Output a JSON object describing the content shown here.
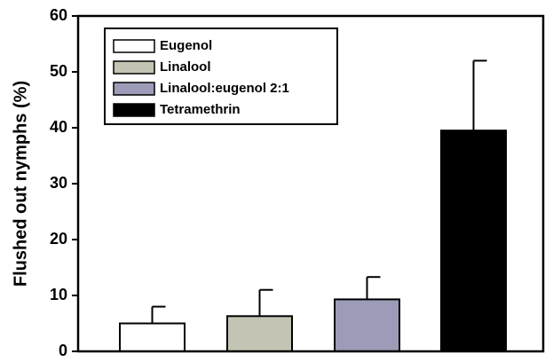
{
  "chart_data": {
    "type": "bar",
    "y_label": "Flushed out nymphs (%)",
    "series": [
      {
        "name": "Eugenol",
        "color": "#ffffff",
        "values": [
          5
        ],
        "errors": [
          3
        ]
      },
      {
        "name": "Linalool",
        "color": "#c4c4b4",
        "values": [
          6.3
        ],
        "errors": [
          4.7
        ]
      },
      {
        "name": "Linalool:eugenol  2:1",
        "color": "#9c9cb8",
        "values": [
          9.3
        ],
        "errors": [
          4
        ]
      },
      {
        "name": "Tetramethrin",
        "color": "#000000",
        "values": [
          39.5
        ],
        "errors": [
          12.5
        ]
      }
    ],
    "ylim": [
      0,
      60
    ],
    "yticks": [
      0,
      10,
      20,
      30,
      40,
      50,
      60
    ],
    "legend": "upper-left"
  }
}
